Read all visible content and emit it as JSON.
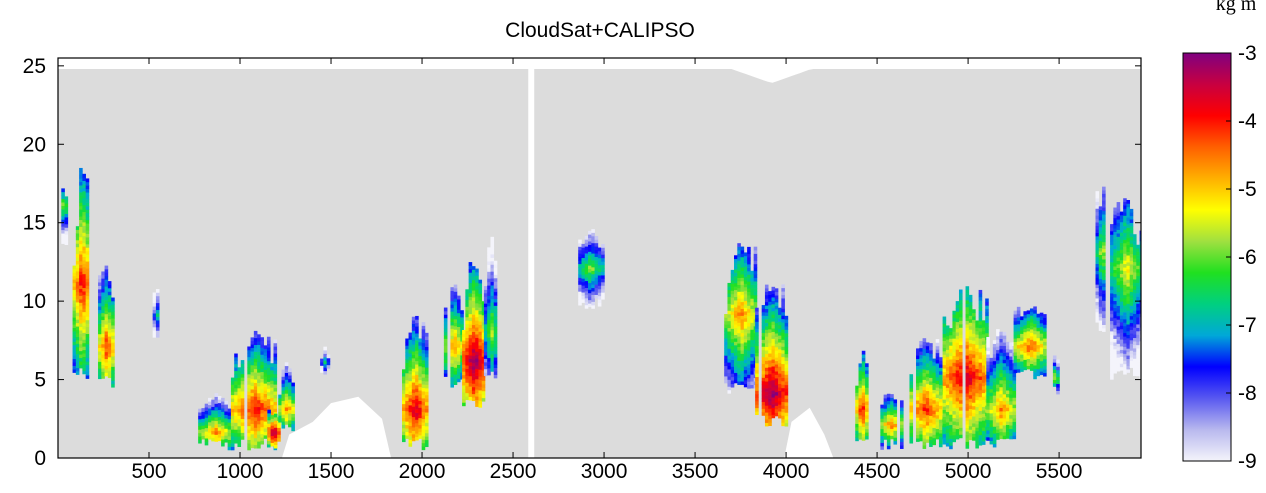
{
  "chart_data": {
    "type": "heatmap",
    "title": "CloudSat+CALIPSO",
    "xlabel": "",
    "ylabel": "",
    "xlim": [
      0,
      5950
    ],
    "ylim": [
      0,
      25.5
    ],
    "xticks": [
      500,
      1000,
      1500,
      2000,
      2500,
      3000,
      3500,
      4000,
      4500,
      5000,
      5500
    ],
    "yticks": [
      0,
      5,
      10,
      15,
      20,
      25
    ],
    "colorbar": {
      "unit_label": "kg m",
      "range": [
        -9,
        -3
      ],
      "ticks": [
        -3,
        -4,
        -5,
        -6,
        -7,
        -8,
        -9
      ],
      "colors": [
        "#f4f4fb",
        "#b8b8ee",
        "#5858f0",
        "#0000ff",
        "#00a8d8",
        "#00d080",
        "#20e020",
        "#a0e040",
        "#ffff00",
        "#ffb000",
        "#ff6000",
        "#ff0000",
        "#c80040",
        "#800080"
      ]
    },
    "background_color": "#dcdcdc",
    "gap_x": 2600,
    "surface_gaps": [
      {
        "x": [
          1230,
          1270,
          1400,
          1500,
          1650,
          1780,
          1830
        ],
        "top": [
          0,
          1.5,
          2.3,
          3.5,
          3.9,
          2.5,
          0
        ]
      },
      {
        "x": [
          3990,
          4030,
          4130,
          4210,
          4260
        ],
        "top": [
          0,
          2.3,
          3.2,
          1.5,
          0
        ]
      }
    ],
    "cloud_regions": [
      {
        "x": [
          0,
          50
        ],
        "base": 13.5,
        "top": 17.2,
        "core": 16,
        "core_value": -5.5
      },
      {
        "x": [
          80,
          170
        ],
        "base": 5.0,
        "top": 18.3,
        "core": 11,
        "core_value": -3.8
      },
      {
        "x": [
          220,
          300
        ],
        "base": 4.5,
        "top": 12.5,
        "core": 7,
        "core_value": -4.0
      },
      {
        "x": [
          520,
          550
        ],
        "base": 7.0,
        "top": 11.0,
        "core": 9,
        "core_value": -6.5
      },
      {
        "x": [
          770,
          950
        ],
        "base": 0.5,
        "top": 4.0,
        "core": 1.5,
        "core_value": -4.5
      },
      {
        "x": [
          950,
          1200
        ],
        "base": 0.5,
        "top": 8.0,
        "core": 3,
        "core_value": -3.8
      },
      {
        "x": [
          1150,
          1210
        ],
        "base": 0.5,
        "top": 3.0,
        "core": 1.5,
        "core_value": -3.0
      },
      {
        "x": [
          1210,
          1290
        ],
        "base": 1.5,
        "top": 6.0,
        "core": 3,
        "core_value": -4.5
      },
      {
        "x": [
          1440,
          1480
        ],
        "base": 5.0,
        "top": 7.0,
        "core": 6,
        "core_value": -6.5
      },
      {
        "x": [
          1890,
          2020
        ],
        "base": 0.5,
        "top": 9.0,
        "core": 3,
        "core_value": -3.5
      },
      {
        "x": [
          2120,
          2220
        ],
        "base": 4.5,
        "top": 11.0,
        "core": 7,
        "core_value": -4.5
      },
      {
        "x": [
          2220,
          2340
        ],
        "base": 3.0,
        "top": 12.5,
        "core": 6,
        "core_value": -3.0
      },
      {
        "x": [
          2340,
          2410
        ],
        "base": 5.0,
        "top": 14.0,
        "core": 8,
        "core_value": -5.5
      },
      {
        "x": [
          2840,
          3000
        ],
        "base": 9.5,
        "top": 14.5,
        "core": 12,
        "core_value": -5.8
      },
      {
        "x": [
          3660,
          3830
        ],
        "base": 4.0,
        "top": 13.5,
        "core": 9,
        "core_value": -4.5
      },
      {
        "x": [
          3830,
          4000
        ],
        "base": 2.0,
        "top": 11.0,
        "core": 4,
        "core_value": -3.0
      },
      {
        "x": [
          4380,
          4440
        ],
        "base": 0.5,
        "top": 7.0,
        "core": 3,
        "core_value": -3.8
      },
      {
        "x": [
          4500,
          4640
        ],
        "base": 0.5,
        "top": 4.0,
        "core": 2,
        "core_value": -4.5
      },
      {
        "x": [
          4660,
          4860
        ],
        "base": 0.5,
        "top": 7.5,
        "core": 3,
        "core_value": -4.0
      },
      {
        "x": [
          4860,
          5100
        ],
        "base": 0.5,
        "top": 11.0,
        "core": 5,
        "core_value": -3.5
      },
      {
        "x": [
          5100,
          5250
        ],
        "base": 0.5,
        "top": 8.0,
        "core": 3,
        "core_value": -4.5
      },
      {
        "x": [
          5250,
          5420
        ],
        "base": 5.0,
        "top": 9.5,
        "core": 7,
        "core_value": -4.2
      },
      {
        "x": [
          5430,
          5500
        ],
        "base": 4.0,
        "top": 6.5,
        "core": 5,
        "core_value": -5.5
      },
      {
        "x": [
          5700,
          5760
        ],
        "base": 8.0,
        "top": 17.5,
        "core": 13,
        "core_value": -5.5
      },
      {
        "x": [
          5780,
          5950
        ],
        "base": 5.0,
        "top": 16.5,
        "core": 12,
        "core_value": -5.2
      }
    ]
  }
}
